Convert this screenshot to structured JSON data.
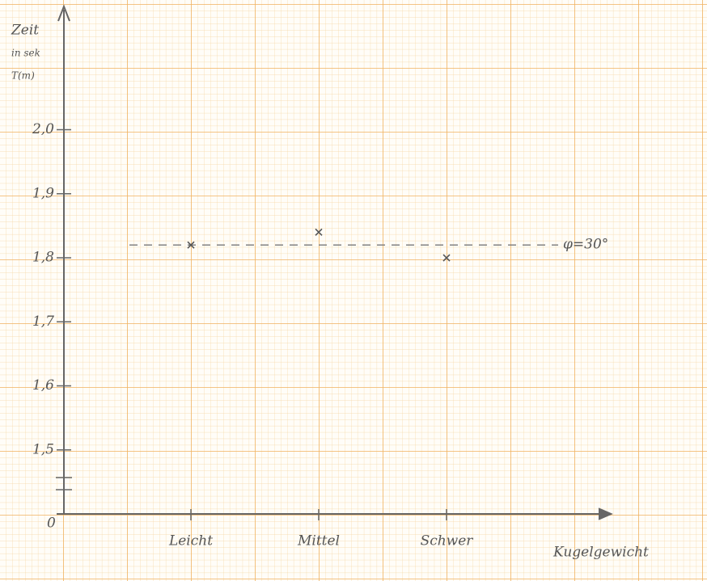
{
  "chart_data": {
    "type": "scatter",
    "ylabel": [
      "Zeit",
      "in sek",
      "T(m)"
    ],
    "xlabel": "Kugelgewicht",
    "categories": [
      "Leicht",
      "Mittel",
      "Schwer"
    ],
    "values": [
      1.82,
      1.84,
      1.8
    ],
    "color": "#555555",
    "ylim": [
      1.4,
      2.19
    ],
    "yticks": [
      {
        "value": 1.5,
        "label": "1,5"
      },
      {
        "value": 1.6,
        "label": "1,6"
      },
      {
        "value": 1.7,
        "label": "1,7"
      },
      {
        "value": 1.8,
        "label": "1,8"
      },
      {
        "value": 1.9,
        "label": "1,9"
      },
      {
        "value": 2.0,
        "label": "2,0"
      }
    ],
    "y_origin_label": "0",
    "reference": {
      "value": 1.82,
      "label": "φ=30°"
    }
  }
}
